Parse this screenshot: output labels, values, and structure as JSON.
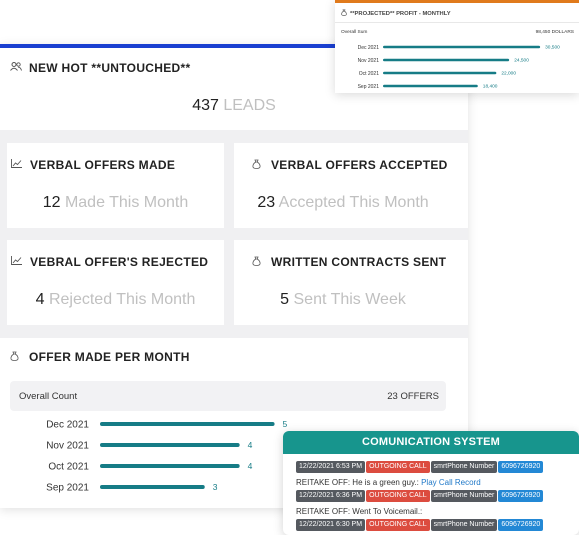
{
  "hot_leads": {
    "title": "NEW HOT **UNTOUCHED**",
    "icon": "users-icon",
    "value": "437",
    "unit": "LEADS"
  },
  "tiles": [
    {
      "title": "VERBAL OFFERS MADE",
      "icon": "line-chart-icon",
      "value": "12",
      "unit": "Made This Month"
    },
    {
      "title": "VERBAL OFFERS ACCEPTED",
      "icon": "money-bag-icon",
      "value": "23",
      "unit": "Accepted This Month"
    },
    {
      "title": "VEBRAL OFFER'S REJECTED",
      "icon": "line-chart-icon",
      "value": "4",
      "unit": "Rejected This Month"
    },
    {
      "title": "WRITTEN CONTRACTS SENT",
      "icon": "money-bag-icon",
      "value": "5",
      "unit": "Sent This Week"
    }
  ],
  "offers_per_month": {
    "title": "OFFER MADE PER MONTH",
    "icon": "money-bag-icon",
    "overall_label": "Overall Count",
    "overall_value": "23 OFFERS"
  },
  "projected_profit": {
    "title": "**PROJECTED** PROFIT - MONTHLY",
    "icon": "money-bag-icon",
    "overall_label": "Overall Sum",
    "overall_value": "98,450 DOLLARS"
  },
  "communication": {
    "title": "COMUNICATION SYSTEM",
    "rows": [
      {
        "timestamp": "12/22/2021 6:53 PM",
        "call_type": "OUTGOING CALL",
        "line_label": "smrtPhone Number",
        "number": "6096726920"
      },
      {
        "timestamp": "12/22/2021 6:36 PM",
        "call_type": "OUTGOING CALL",
        "line_label": "smrtPhone Number",
        "number": "6096726920"
      },
      {
        "timestamp": "12/22/2021 6:30 PM",
        "call_type": "OUTGOING CALL",
        "line_label": "smrtPhone Number",
        "number": "6096726920"
      }
    ],
    "notes": [
      {
        "text": "REITAKE OFF: He is a green guy.:",
        "link": "Play Call Record"
      },
      {
        "text": "REITAKE OFF: Went To Voicemail.:",
        "link": ""
      }
    ]
  },
  "colors": {
    "accent_blue": "#1a3fd0",
    "bar_teal": "#167c86",
    "header_teal": "#17958d",
    "profit_orange": "#e07a1c",
    "chip_red": "#dc4c3f",
    "chip_blue": "#2388d5",
    "chip_dark": "#55595f"
  },
  "chart_data": [
    {
      "type": "bar",
      "orientation": "horizontal",
      "categories": [
        "Dec 2021",
        "Nov 2021",
        "Oct 2021",
        "Sep 2021"
      ],
      "values": [
        5,
        4,
        4,
        3
      ],
      "xlim": [
        0,
        5.7
      ]
    },
    {
      "type": "bar",
      "orientation": "horizontal",
      "categories": [
        "Dec 2021",
        "Nov 2021",
        "Oct 2021",
        "Sep 2021"
      ],
      "values": [
        30500,
        24500,
        22000,
        18400
      ],
      "value_labels": [
        "30,500",
        "24,500",
        "22,000",
        "18,400"
      ],
      "xlim": [
        0,
        33000
      ]
    }
  ]
}
